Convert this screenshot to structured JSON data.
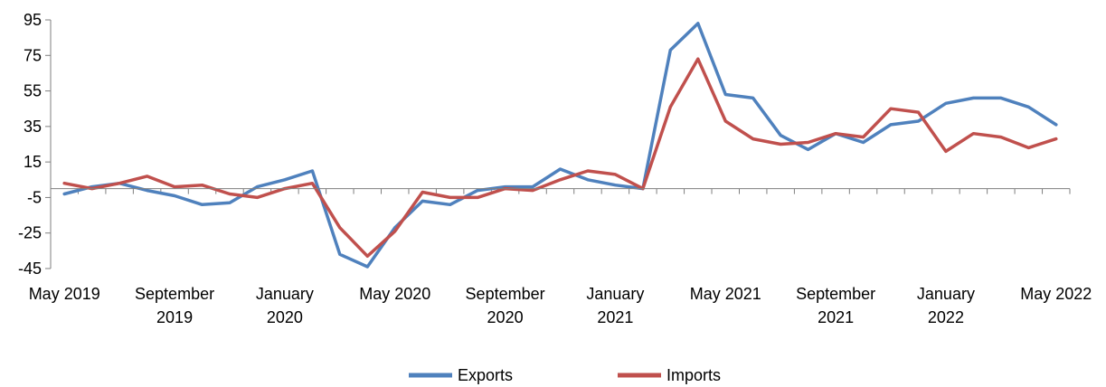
{
  "chart_data": {
    "type": "line",
    "title": "",
    "xlabel": "",
    "ylabel": "",
    "ylim": [
      -45,
      95
    ],
    "y_ticks": [
      "95",
      "75",
      "55",
      "35",
      "15",
      "-5",
      "-25",
      "-45"
    ],
    "x_tick_labels": [
      {
        "lines": [
          "May 2019"
        ],
        "index": 0
      },
      {
        "lines": [
          "September",
          "2019"
        ],
        "index": 4
      },
      {
        "lines": [
          "January",
          "2020"
        ],
        "index": 8
      },
      {
        "lines": [
          "May 2020"
        ],
        "index": 12
      },
      {
        "lines": [
          "September",
          "2020"
        ],
        "index": 16
      },
      {
        "lines": [
          "January",
          "2021"
        ],
        "index": 20
      },
      {
        "lines": [
          "May 2021"
        ],
        "index": 24
      },
      {
        "lines": [
          "September",
          "2021"
        ],
        "index": 28
      },
      {
        "lines": [
          "January",
          "2022"
        ],
        "index": 32
      },
      {
        "lines": [
          "May 2022"
        ],
        "index": 36
      }
    ],
    "x": [
      "May 2019",
      "Jun 2019",
      "Jul 2019",
      "Aug 2019",
      "Sep 2019",
      "Oct 2019",
      "Nov 2019",
      "Dec 2019",
      "Jan 2020",
      "Feb 2020",
      "Mar 2020",
      "Apr 2020",
      "May 2020",
      "Jun 2020",
      "Jul 2020",
      "Aug 2020",
      "Sep 2020",
      "Oct 2020",
      "Nov 2020",
      "Dec 2020",
      "Jan 2021",
      "Feb 2021",
      "Mar 2021",
      "Apr 2021",
      "May 2021",
      "Jun 2021",
      "Jul 2021",
      "Aug 2021",
      "Sep 2021",
      "Oct 2021",
      "Nov 2021",
      "Dec 2021",
      "Jan 2022",
      "Feb 2022",
      "Mar 2022",
      "Apr 2022",
      "May 2022"
    ],
    "series": [
      {
        "name": "Exports",
        "color": "#4f81bd",
        "values": [
          -3,
          1,
          3,
          -1,
          -4,
          -9,
          -8,
          1,
          5,
          10,
          -37,
          -44,
          -22,
          -7,
          -9,
          -1,
          1,
          1,
          11,
          5,
          2,
          0,
          78,
          93,
          53,
          51,
          30,
          22,
          31,
          26,
          36,
          38,
          48,
          51,
          51,
          46,
          36
        ]
      },
      {
        "name": "Imports",
        "color": "#c0504d",
        "values": [
          3,
          0,
          3,
          7,
          1,
          2,
          -3,
          -5,
          0,
          3,
          -22,
          -38,
          -24,
          -2,
          -5,
          -5,
          0,
          -1,
          5,
          10,
          8,
          0,
          46,
          73,
          38,
          28,
          25,
          26,
          31,
          29,
          45,
          43,
          21,
          31,
          29,
          23,
          28
        ]
      }
    ],
    "grid": false,
    "legend_position": "bottom-center"
  }
}
